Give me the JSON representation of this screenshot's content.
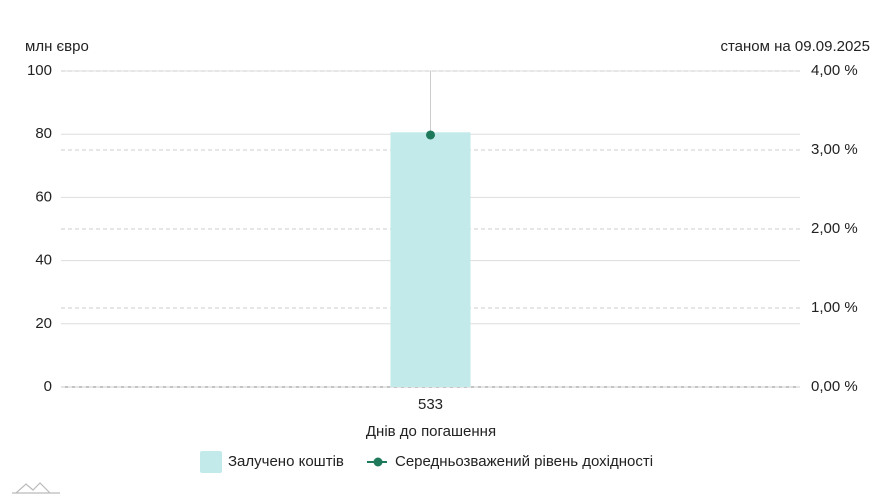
{
  "chart_data": {
    "type": "bar",
    "y_axis_label": "млн євро",
    "subtitle": "станом на 09.09.2025",
    "x_axis_label": "Днів до погашення",
    "categories": [
      "533"
    ],
    "series": [
      {
        "name": "Залучено коштів",
        "type": "bar",
        "color": "#c2eaea",
        "values": [
          80.6
        ]
      },
      {
        "name": "Середньозважений рівень дохідності",
        "type": "line",
        "axis": "y2",
        "color": "#1f7a5c",
        "values": [
          3.19
        ]
      }
    ],
    "ylim": [
      0,
      100
    ],
    "yticks": [
      0,
      20,
      40,
      60,
      80,
      100
    ],
    "y2lim": [
      0,
      4
    ],
    "y2ticks": [
      {
        "value": 0,
        "label": "0,00 %"
      },
      {
        "value": 1,
        "label": "1,00 %"
      },
      {
        "value": 2,
        "label": "2,00 %"
      },
      {
        "value": 3,
        "label": "3,00 %"
      },
      {
        "value": 4,
        "label": "4,00 %"
      }
    ],
    "grid": true
  }
}
